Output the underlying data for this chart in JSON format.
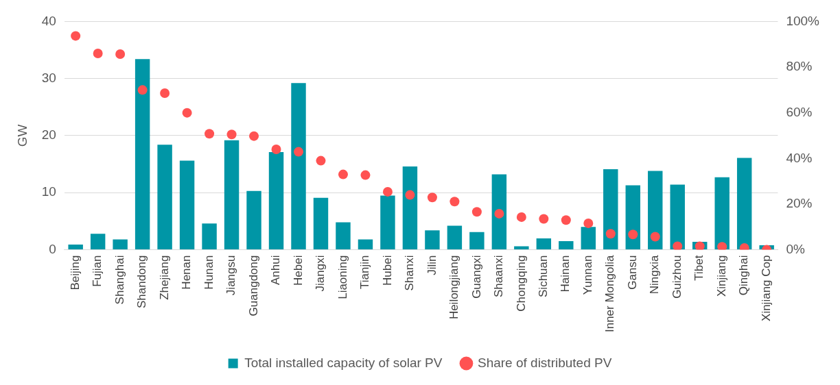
{
  "chart_data": {
    "type": "bar",
    "ylabel": "GW",
    "categories": [
      "Beijing",
      "Fujian",
      "Shanghai",
      "Shandong",
      "Zhejiang",
      "Henan",
      "Hunan",
      "Jiangsu",
      "Guangdong",
      "Anhui",
      "Hebei",
      "Jiangxi",
      "Liaoning",
      "Tianjin",
      "Hubei",
      "Shanxi",
      "Jilin",
      "Heilongjiang",
      "Guangxi",
      "Shaanxi",
      "Chongqing",
      "Sichuan",
      "Hainan",
      "Yunnan",
      "Inner Mongolia",
      "Gansu",
      "Ningxia",
      "Guizhou",
      "Tibet",
      "Xinjiang",
      "Qinghai",
      "Xinjiang Cop"
    ],
    "series": [
      {
        "name": "Total installed capacity of solar PV",
        "color": "#0096a6",
        "values": [
          0.9,
          2.8,
          1.8,
          33.4,
          18.4,
          15.6,
          4.6,
          19.2,
          10.3,
          17.1,
          29.2,
          9.1,
          4.8,
          1.8,
          9.5,
          14.6,
          3.4,
          4.2,
          3.1,
          13.2,
          0.6,
          2.0,
          1.5,
          4.0,
          14.1,
          11.3,
          13.8,
          11.4,
          1.4,
          12.7,
          16.1,
          0.8
        ]
      },
      {
        "name": "Share of distributed PV",
        "type": "scatter",
        "axis": "y2",
        "color": "#ff5252",
        "marker": "circle",
        "values": [
          93.7,
          86,
          85.7,
          70,
          68.6,
          60,
          50.8,
          50.5,
          49.8,
          44,
          42.9,
          39,
          33,
          32.7,
          25.4,
          24,
          22.9,
          21.1,
          16.6,
          15.8,
          14.3,
          13.5,
          13,
          11.6,
          7,
          6.7,
          5.7,
          1.5,
          1.5,
          1.3,
          0.8,
          0
        ]
      }
    ],
    "ylim": [
      0,
      40
    ],
    "yticks": [
      0,
      10,
      20,
      30,
      40
    ],
    "y2lim": [
      0,
      100
    ],
    "y2ticks": [
      {
        "value": 0,
        "label": "0%"
      },
      {
        "value": 20,
        "label": "20%"
      },
      {
        "value": 40,
        "label": "40%"
      },
      {
        "value": 60,
        "label": "60%"
      },
      {
        "value": 80,
        "label": "80%"
      },
      {
        "value": 100,
        "label": "100%"
      }
    ],
    "grid": "y",
    "legend": "bottom"
  }
}
